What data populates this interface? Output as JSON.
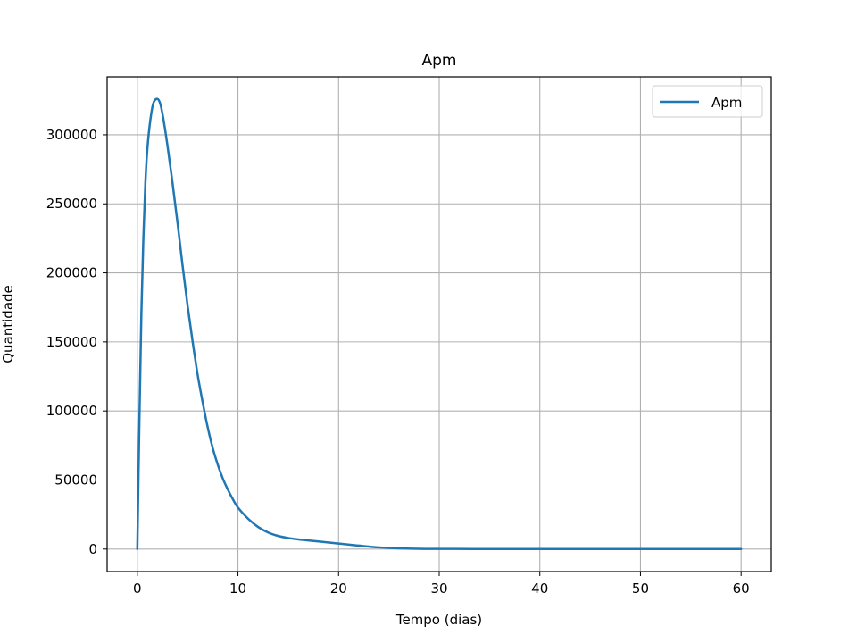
{
  "chart_data": {
    "type": "line",
    "title": "Apm",
    "xlabel": "Tempo (dias)",
    "ylabel": "Quantidade",
    "xlim": [
      -3,
      63
    ],
    "ylim": [
      -16300,
      342000
    ],
    "xticks": [
      0,
      10,
      20,
      30,
      40,
      50,
      60
    ],
    "xtick_labels": [
      "0",
      "10",
      "20",
      "30",
      "40",
      "50",
      "60"
    ],
    "yticks": [
      0,
      50000,
      100000,
      150000,
      200000,
      250000,
      300000
    ],
    "ytick_labels": [
      "0",
      "50000",
      "100000",
      "150000",
      "200000",
      "250000",
      "300000"
    ],
    "grid": true,
    "legend_position": "upper right",
    "series": [
      {
        "name": "Apm",
        "color": "#1f77b4",
        "x": [
          0,
          0.2,
          0.4,
          0.6,
          0.8,
          1.0,
          1.3,
          1.6,
          2.0,
          2.3,
          2.6,
          3.0,
          3.5,
          4.0,
          4.5,
          5.0,
          5.5,
          6.0,
          6.5,
          7.0,
          7.5,
          8.0,
          8.5,
          9.0,
          9.5,
          10.0,
          11.0,
          12.0,
          13.0,
          14.0,
          15.0,
          16.0,
          18.0,
          20.0,
          22.0,
          24.0,
          26.0,
          28.0,
          30.0,
          35.0,
          40.0,
          45.0,
          50.0,
          55.0,
          60.0
        ],
        "y": [
          0,
          90000,
          170000,
          225000,
          265000,
          290000,
          311000,
          323000,
          326000,
          322000,
          311000,
          292000,
          265000,
          236000,
          205000,
          176000,
          150000,
          126000,
          106000,
          88000,
          73000,
          61000,
          51000,
          43000,
          36000,
          30000,
          22000,
          16000,
          12000,
          9500,
          8000,
          7000,
          5500,
          4000,
          2500,
          1200,
          500,
          200,
          100,
          50,
          20,
          10,
          5,
          2,
          0
        ]
      }
    ]
  }
}
